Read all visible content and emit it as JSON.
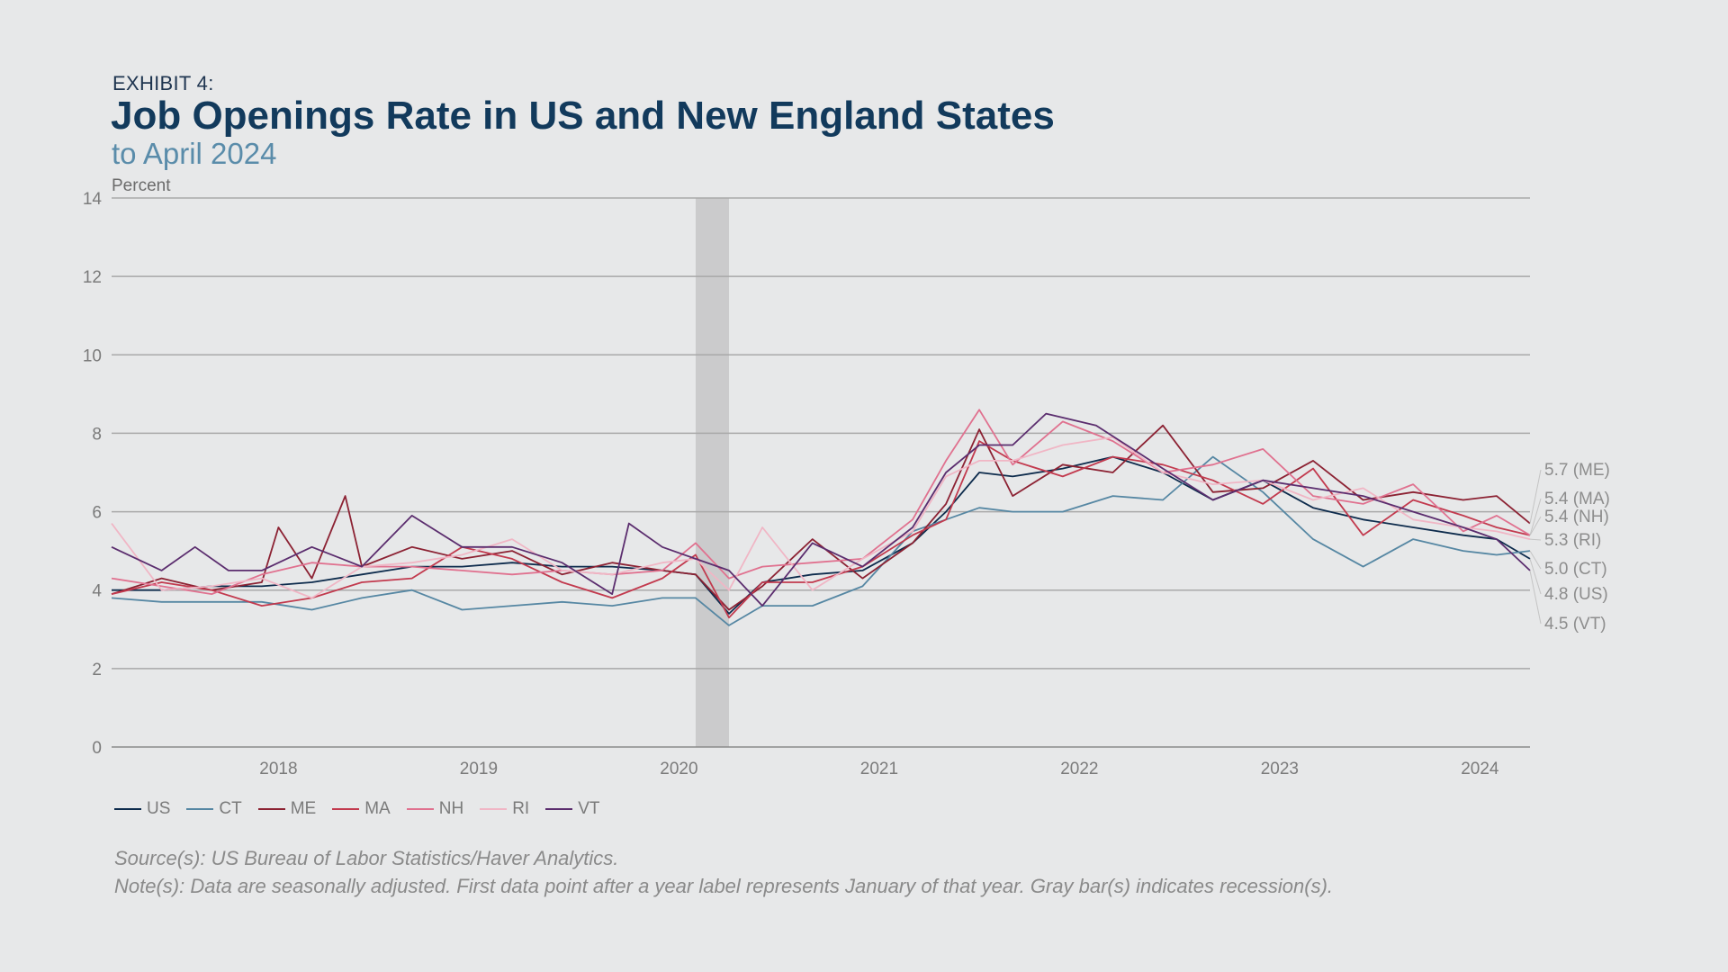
{
  "header": {
    "exhibit": "EXHIBIT 4:",
    "title": "Job Openings Rate in US and New England States",
    "subtitle": "to April 2024"
  },
  "chart_data": {
    "type": "line",
    "title": "Job Openings Rate in US and New England States",
    "subtitle": "to April 2024",
    "ylabel": "Percent",
    "ylim": [
      0,
      14
    ],
    "yticks": [
      0,
      2,
      4,
      6,
      8,
      10,
      12,
      14
    ],
    "xticks": [
      "2018",
      "2019",
      "2020",
      "2021",
      "2022",
      "2023",
      "2024"
    ],
    "x_start": "2017-03",
    "x_end": "2024-04",
    "grid": true,
    "legend_position": "bottom",
    "recession_shading": [
      {
        "start": "2020-02",
        "end": "2020-04"
      }
    ],
    "series": [
      {
        "name": "US",
        "color": "#0d2b4c",
        "end_label": "4.8 (US)",
        "points": [
          [
            "2017-03",
            4.0
          ],
          [
            "2017-06",
            4.0
          ],
          [
            "2017-09",
            4.1
          ],
          [
            "2017-12",
            4.1
          ],
          [
            "2018-03",
            4.2
          ],
          [
            "2018-06",
            4.4
          ],
          [
            "2018-09",
            4.6
          ],
          [
            "2018-12",
            4.6
          ],
          [
            "2019-03",
            4.7
          ],
          [
            "2019-06",
            4.6
          ],
          [
            "2019-09",
            4.6
          ],
          [
            "2019-12",
            4.5
          ],
          [
            "2020-02",
            4.4
          ],
          [
            "2020-04",
            3.4
          ],
          [
            "2020-06",
            4.2
          ],
          [
            "2020-09",
            4.4
          ],
          [
            "2020-12",
            4.5
          ],
          [
            "2021-03",
            5.2
          ],
          [
            "2021-05",
            6.0
          ],
          [
            "2021-07",
            7.0
          ],
          [
            "2021-09",
            6.9
          ],
          [
            "2021-12",
            7.1
          ],
          [
            "2022-03",
            7.4
          ],
          [
            "2022-06",
            7.0
          ],
          [
            "2022-09",
            6.3
          ],
          [
            "2022-12",
            6.8
          ],
          [
            "2023-03",
            6.1
          ],
          [
            "2023-06",
            5.8
          ],
          [
            "2023-09",
            5.6
          ],
          [
            "2023-12",
            5.4
          ],
          [
            "2024-02",
            5.3
          ],
          [
            "2024-04",
            4.8
          ]
        ]
      },
      {
        "name": "CT",
        "color": "#5687a3",
        "end_label": "5.0 (CT)",
        "points": [
          [
            "2017-03",
            3.8
          ],
          [
            "2017-06",
            3.7
          ],
          [
            "2017-09",
            3.7
          ],
          [
            "2017-12",
            3.7
          ],
          [
            "2018-03",
            3.5
          ],
          [
            "2018-06",
            3.8
          ],
          [
            "2018-09",
            4.0
          ],
          [
            "2018-12",
            3.5
          ],
          [
            "2019-03",
            3.6
          ],
          [
            "2019-06",
            3.7
          ],
          [
            "2019-09",
            3.6
          ],
          [
            "2019-12",
            3.8
          ],
          [
            "2020-02",
            3.8
          ],
          [
            "2020-04",
            3.1
          ],
          [
            "2020-06",
            3.6
          ],
          [
            "2020-09",
            3.6
          ],
          [
            "2020-12",
            4.1
          ],
          [
            "2021-03",
            5.5
          ],
          [
            "2021-05",
            5.8
          ],
          [
            "2021-07",
            6.1
          ],
          [
            "2021-09",
            6.0
          ],
          [
            "2021-12",
            6.0
          ],
          [
            "2022-03",
            6.4
          ],
          [
            "2022-06",
            6.3
          ],
          [
            "2022-09",
            7.4
          ],
          [
            "2022-12",
            6.5
          ],
          [
            "2023-03",
            5.3
          ],
          [
            "2023-06",
            4.6
          ],
          [
            "2023-09",
            5.3
          ],
          [
            "2023-12",
            5.0
          ],
          [
            "2024-02",
            4.9
          ],
          [
            "2024-04",
            5.0
          ]
        ]
      },
      {
        "name": "ME",
        "color": "#8c2233",
        "end_label": "5.7 (ME)",
        "points": [
          [
            "2017-03",
            3.9
          ],
          [
            "2017-06",
            4.3
          ],
          [
            "2017-09",
            4.0
          ],
          [
            "2017-12",
            4.2
          ],
          [
            "2018-01",
            5.6
          ],
          [
            "2018-03",
            4.3
          ],
          [
            "2018-05",
            6.4
          ],
          [
            "2018-06",
            4.6
          ],
          [
            "2018-09",
            5.1
          ],
          [
            "2018-12",
            4.8
          ],
          [
            "2019-03",
            5.0
          ],
          [
            "2019-06",
            4.4
          ],
          [
            "2019-09",
            4.7
          ],
          [
            "2019-12",
            4.5
          ],
          [
            "2020-02",
            4.4
          ],
          [
            "2020-04",
            3.5
          ],
          [
            "2020-06",
            4.1
          ],
          [
            "2020-09",
            5.3
          ],
          [
            "2020-12",
            4.3
          ],
          [
            "2021-03",
            5.2
          ],
          [
            "2021-05",
            6.2
          ],
          [
            "2021-07",
            8.1
          ],
          [
            "2021-09",
            6.4
          ],
          [
            "2021-12",
            7.2
          ],
          [
            "2022-03",
            7.0
          ],
          [
            "2022-06",
            8.2
          ],
          [
            "2022-09",
            6.5
          ],
          [
            "2022-12",
            6.6
          ],
          [
            "2023-03",
            7.3
          ],
          [
            "2023-06",
            6.3
          ],
          [
            "2023-09",
            6.5
          ],
          [
            "2023-12",
            6.3
          ],
          [
            "2024-02",
            6.4
          ],
          [
            "2024-04",
            5.7
          ]
        ]
      },
      {
        "name": "MA",
        "color": "#c23a4e",
        "end_label": "5.4 (MA)",
        "points": [
          [
            "2017-03",
            3.9
          ],
          [
            "2017-06",
            4.2
          ],
          [
            "2017-09",
            4.0
          ],
          [
            "2017-12",
            3.6
          ],
          [
            "2018-03",
            3.8
          ],
          [
            "2018-06",
            4.2
          ],
          [
            "2018-09",
            4.3
          ],
          [
            "2018-12",
            5.1
          ],
          [
            "2019-03",
            4.8
          ],
          [
            "2019-06",
            4.2
          ],
          [
            "2019-09",
            3.8
          ],
          [
            "2019-12",
            4.3
          ],
          [
            "2020-02",
            4.9
          ],
          [
            "2020-04",
            3.3
          ],
          [
            "2020-06",
            4.2
          ],
          [
            "2020-09",
            4.2
          ],
          [
            "2020-12",
            4.6
          ],
          [
            "2021-03",
            5.4
          ],
          [
            "2021-05",
            5.8
          ],
          [
            "2021-07",
            7.8
          ],
          [
            "2021-09",
            7.3
          ],
          [
            "2021-12",
            6.9
          ],
          [
            "2022-03",
            7.4
          ],
          [
            "2022-06",
            7.2
          ],
          [
            "2022-09",
            6.8
          ],
          [
            "2022-12",
            6.2
          ],
          [
            "2023-03",
            7.1
          ],
          [
            "2023-06",
            5.4
          ],
          [
            "2023-09",
            6.3
          ],
          [
            "2023-12",
            5.9
          ],
          [
            "2024-02",
            5.6
          ],
          [
            "2024-04",
            5.4
          ]
        ]
      },
      {
        "name": "NH",
        "color": "#e0718f",
        "end_label": "5.4 (NH)",
        "points": [
          [
            "2017-03",
            4.3
          ],
          [
            "2017-06",
            4.1
          ],
          [
            "2017-09",
            3.9
          ],
          [
            "2017-12",
            4.4
          ],
          [
            "2018-03",
            4.7
          ],
          [
            "2018-06",
            4.6
          ],
          [
            "2018-09",
            4.6
          ],
          [
            "2018-12",
            4.5
          ],
          [
            "2019-03",
            4.4
          ],
          [
            "2019-06",
            4.5
          ],
          [
            "2019-09",
            4.4
          ],
          [
            "2019-12",
            4.5
          ],
          [
            "2020-02",
            5.2
          ],
          [
            "2020-04",
            4.3
          ],
          [
            "2020-06",
            4.6
          ],
          [
            "2020-09",
            4.7
          ],
          [
            "2020-12",
            4.8
          ],
          [
            "2021-03",
            5.8
          ],
          [
            "2021-05",
            7.3
          ],
          [
            "2021-07",
            8.6
          ],
          [
            "2021-09",
            7.2
          ],
          [
            "2021-12",
            8.3
          ],
          [
            "2022-03",
            7.8
          ],
          [
            "2022-06",
            7.0
          ],
          [
            "2022-09",
            7.2
          ],
          [
            "2022-12",
            7.6
          ],
          [
            "2023-03",
            6.4
          ],
          [
            "2023-06",
            6.2
          ],
          [
            "2023-09",
            6.7
          ],
          [
            "2023-12",
            5.5
          ],
          [
            "2024-02",
            5.9
          ],
          [
            "2024-04",
            5.4
          ]
        ]
      },
      {
        "name": "RI",
        "color": "#f0b6c5",
        "end_label": "5.3 (RI)",
        "points": [
          [
            "2017-03",
            5.7
          ],
          [
            "2017-06",
            4.0
          ],
          [
            "2017-09",
            4.1
          ],
          [
            "2017-12",
            4.3
          ],
          [
            "2018-03",
            3.8
          ],
          [
            "2018-06",
            4.6
          ],
          [
            "2018-09",
            4.7
          ],
          [
            "2018-12",
            4.9
          ],
          [
            "2019-03",
            5.3
          ],
          [
            "2019-06",
            4.5
          ],
          [
            "2019-09",
            4.4
          ],
          [
            "2019-12",
            4.7
          ],
          [
            "2020-02",
            4.8
          ],
          [
            "2020-04",
            4.0
          ],
          [
            "2020-06",
            5.6
          ],
          [
            "2020-09",
            4.0
          ],
          [
            "2020-12",
            4.8
          ],
          [
            "2021-03",
            5.5
          ],
          [
            "2021-05",
            6.9
          ],
          [
            "2021-07",
            7.3
          ],
          [
            "2021-09",
            7.3
          ],
          [
            "2021-12",
            7.7
          ],
          [
            "2022-03",
            7.9
          ],
          [
            "2022-06",
            7.0
          ],
          [
            "2022-09",
            6.7
          ],
          [
            "2022-12",
            6.8
          ],
          [
            "2023-03",
            6.3
          ],
          [
            "2023-06",
            6.6
          ],
          [
            "2023-09",
            5.8
          ],
          [
            "2023-12",
            5.6
          ],
          [
            "2024-02",
            5.5
          ],
          [
            "2024-04",
            5.3
          ]
        ]
      },
      {
        "name": "VT",
        "color": "#5b2d6e",
        "end_label": "4.5 (VT)",
        "points": [
          [
            "2017-03",
            5.1
          ],
          [
            "2017-06",
            4.5
          ],
          [
            "2017-08",
            5.1
          ],
          [
            "2017-10",
            4.5
          ],
          [
            "2017-12",
            4.5
          ],
          [
            "2018-03",
            5.1
          ],
          [
            "2018-06",
            4.6
          ],
          [
            "2018-09",
            5.9
          ],
          [
            "2018-12",
            5.1
          ],
          [
            "2019-03",
            5.1
          ],
          [
            "2019-06",
            4.7
          ],
          [
            "2019-09",
            3.9
          ],
          [
            "2019-10",
            5.7
          ],
          [
            "2019-12",
            5.1
          ],
          [
            "2020-02",
            4.8
          ],
          [
            "2020-04",
            4.5
          ],
          [
            "2020-06",
            3.6
          ],
          [
            "2020-09",
            5.2
          ],
          [
            "2020-12",
            4.6
          ],
          [
            "2021-03",
            5.6
          ],
          [
            "2021-05",
            7.0
          ],
          [
            "2021-07",
            7.7
          ],
          [
            "2021-09",
            7.7
          ],
          [
            "2021-11",
            8.5
          ],
          [
            "2022-02",
            8.2
          ],
          [
            "2022-06",
            7.1
          ],
          [
            "2022-09",
            6.3
          ],
          [
            "2022-12",
            6.8
          ],
          [
            "2023-03",
            6.6
          ],
          [
            "2023-06",
            6.4
          ],
          [
            "2023-09",
            6.0
          ],
          [
            "2023-12",
            5.6
          ],
          [
            "2024-02",
            5.3
          ],
          [
            "2024-04",
            4.5
          ]
        ]
      }
    ]
  },
  "footer": {
    "source": "Source(s): US Bureau of Labor Statistics/Haver Analytics.",
    "note": "Note(s): Data are seasonally adjusted. First data point after a year label represents January of that year. Gray bar(s) indicates recession(s)."
  }
}
